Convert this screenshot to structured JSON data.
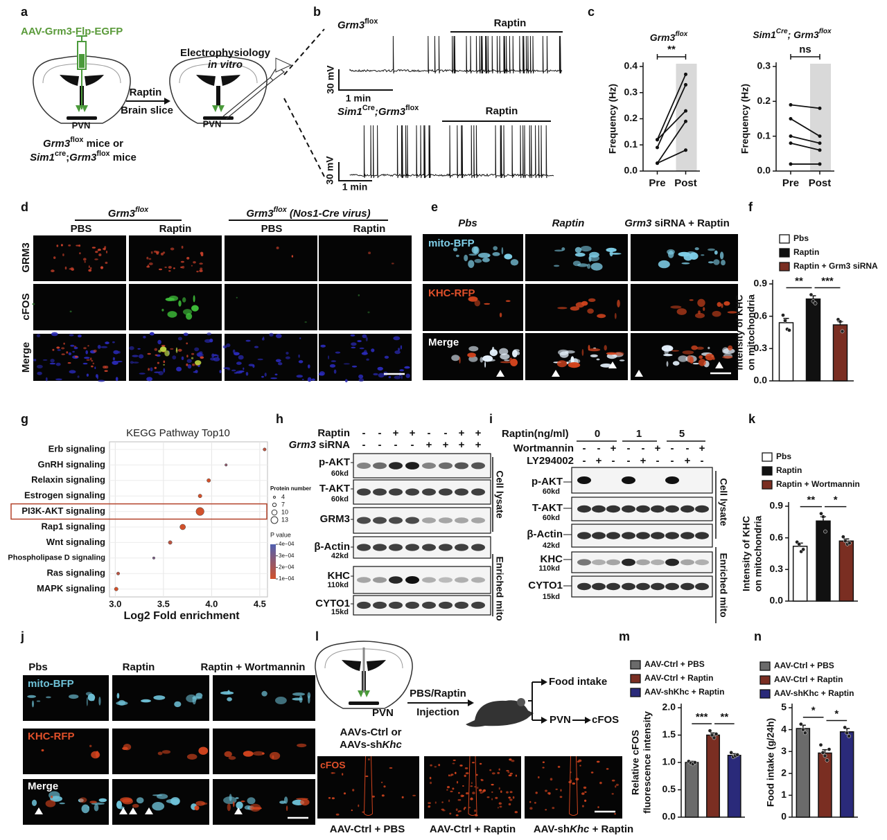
{
  "panel_letters": [
    "a",
    "b",
    "c",
    "d",
    "e",
    "f",
    "g",
    "h",
    "i",
    "j",
    "k",
    "l",
    "m",
    "n"
  ],
  "panel_a": {
    "virus": "AAV-Grm3-Flp-EGFP",
    "pvn_left": "PVN",
    "arrow_top": "Raptin",
    "arrow_bottom": "Brain slice",
    "pvn_right": "PVN",
    "ephys": "Electrophysiology",
    "ephys_sub": "in vitro",
    "mice_1": [
      "Grm3",
      "flox",
      " mice or"
    ],
    "mice_2": [
      "Sim1",
      "cre",
      ";",
      "Grm3",
      "flox",
      " mice"
    ]
  },
  "panel_b": {
    "trace1_title": [
      "Grm3",
      "flox"
    ],
    "trace1_bar": "Raptin",
    "scale1_v": "30 mV",
    "scale1_t": "1 min",
    "trace2_title": [
      "Sim1",
      "Cre",
      ";Grm3",
      "flox"
    ],
    "trace2_bar": "Raptin",
    "scale2_v": "30 mV",
    "scale2_t": "1 min"
  },
  "panel_d": {
    "group1": [
      "Grm3",
      "flox"
    ],
    "group2": [
      "Grm3",
      "flox",
      " (Nos1-Cre virus)"
    ],
    "columns": [
      "PBS",
      "Raptin",
      "PBS",
      "Raptin"
    ],
    "rows": [
      "GRM3",
      "cFOS",
      "Merge"
    ]
  },
  "panel_e": {
    "columns": [
      [
        "Pbs"
      ],
      [
        "Raptin"
      ],
      [
        "Grm3",
        " siRNA + Raptin"
      ]
    ],
    "rows": [
      "mito-BFP",
      "KHC-RFP",
      "Merge"
    ]
  },
  "panel_h": {
    "rows": [
      [
        "Raptin"
      ],
      [
        "Grm3",
        " siRNA"
      ]
    ],
    "signs": [
      [
        "-",
        "-",
        "+",
        "+",
        "-",
        "-",
        "+",
        "+"
      ],
      [
        "-",
        "-",
        "-",
        "-",
        "+",
        "+",
        "+",
        "+"
      ]
    ],
    "blots": [
      {
        "name": "p-AKT",
        "size": "60kd"
      },
      {
        "name": "T-AKT",
        "size": "60kd"
      },
      {
        "name": "GRM3"
      },
      {
        "name": "β-Actin",
        "size": "42kd"
      },
      {
        "name": "KHC",
        "size": "110kd"
      },
      {
        "name": "CYTO1",
        "size": "15kd"
      }
    ],
    "groups": [
      "Cell lysate",
      "Enriched mito"
    ]
  },
  "panel_i": {
    "raptin_label": "Raptin(ng/ml)",
    "doses": [
      "0",
      "1",
      "5"
    ],
    "rows": [
      "Wortmannin",
      "LY294002"
    ],
    "signs": [
      [
        "-",
        "-",
        "+",
        "-",
        "-",
        "+",
        "-",
        "-",
        "+"
      ],
      [
        "-",
        "+",
        "-",
        "-",
        "+",
        "-",
        "-",
        "+",
        "-"
      ]
    ],
    "blots": [
      {
        "name": "p-AKT",
        "size": "60kd"
      },
      {
        "name": "T-AKT",
        "size": "60kd"
      },
      {
        "name": "β-Actin",
        "size": "42kd"
      },
      {
        "name": "KHC",
        "size": "110kd"
      },
      {
        "name": "CYTO1",
        "size": "15kd"
      }
    ],
    "groups": [
      "Cell lysate",
      "Enriched mito"
    ]
  },
  "panel_j": {
    "columns": [
      "Pbs",
      "Raptin",
      "Raptin + Wortmannin"
    ],
    "rows": [
      "mito-BFP",
      "KHC-RFP",
      "Merge"
    ]
  },
  "panel_l": {
    "pvn": "PVN",
    "mice_1": "AAVs-Ctrl or",
    "mice_2": [
      "AAVs-sh",
      "Khc"
    ],
    "injection_1": "PBS/Raptin",
    "injection_2": "Injection",
    "out_1": "Food intake",
    "out_2": "PVN",
    "out_3": "cFOS",
    "image_label": "cFOS",
    "columns": [
      [
        "AAV-Ctrl + PBS"
      ],
      [
        "AAV-Ctrl + Raptin"
      ],
      [
        "AAV-sh",
        "Khc",
        " + Raptin"
      ]
    ]
  },
  "chart_data": [
    {
      "type": "line",
      "title": [
        "Grm3",
        "flox"
      ],
      "categories": [
        "Pre",
        "Post"
      ],
      "ylabel": "Frequency (Hz)",
      "ylim": [
        0,
        0.4
      ],
      "yticks": [
        {
          "value": 0,
          "label": "0.0"
        },
        0.1,
        0.2,
        0.3,
        0.4
      ],
      "color": "#111111",
      "series": [
        {
          "values": [
            0.12,
            0.37
          ]
        },
        {
          "values": [
            0.09,
            0.33
          ]
        },
        {
          "values": [
            0.12,
            0.23
          ]
        },
        {
          "values": [
            0.03,
            0.19
          ]
        },
        {
          "values": [
            0.03,
            0.08
          ]
        }
      ],
      "annotation": "**"
    },
    {
      "type": "line",
      "title": [
        "Sim1",
        "Cre",
        "; Grm3",
        "flox"
      ],
      "categories": [
        "Pre",
        "Post"
      ],
      "ylabel": "Frequency (Hz)",
      "ylim": [
        0,
        0.3
      ],
      "yticks": [
        {
          "value": 0,
          "label": "0.0"
        },
        0.1,
        0.2,
        0.3
      ],
      "color": "#111111",
      "series": [
        {
          "values": [
            0.19,
            0.18
          ]
        },
        {
          "values": [
            0.15,
            0.1
          ]
        },
        {
          "values": [
            0.1,
            0.08
          ]
        },
        {
          "values": [
            0.08,
            0.06
          ]
        },
        {
          "values": [
            0.02,
            0.02
          ]
        }
      ],
      "annotation": "ns"
    },
    {
      "type": "bar",
      "ylabel": [
        "Intensity of KHC",
        "on mitochondria"
      ],
      "ylim": [
        0,
        0.9
      ],
      "yticks": [
        {
          "value": 0,
          "label": "0.0"
        },
        0.3,
        0.6,
        0.9
      ],
      "series": [
        {
          "name": "Pbs",
          "color": "#ffffff",
          "values": [
            0.54
          ],
          "errors": [
            0.04
          ],
          "points": [
            0.61,
            0.56,
            0.48,
            0.47
          ]
        },
        {
          "name": "Raptin",
          "color": "#111111",
          "values": [
            0.76
          ],
          "errors": [
            0.03
          ],
          "points": [
            0.8,
            0.74,
            0.72
          ]
        },
        {
          "name": "Raptin + Grm3 siRNA",
          "color": "#7a2e22",
          "values": [
            0.52
          ],
          "errors": [
            0.03
          ],
          "points": [
            0.57,
            0.55,
            0.46
          ]
        }
      ],
      "annotations": [
        {
          "text": "**",
          "from": 0,
          "to": 1
        },
        {
          "text": "***",
          "from": 1,
          "to": 2
        }
      ]
    },
    {
      "type": "bar",
      "ylabel": [
        "Intensity of KHC",
        "on mitochondria"
      ],
      "ylim": [
        0,
        0.9
      ],
      "yticks": [
        {
          "value": 0,
          "label": "0.0"
        },
        0.3,
        0.6,
        0.9
      ],
      "series": [
        {
          "name": "Pbs",
          "color": "#ffffff",
          "values": [
            0.52
          ],
          "errors": [
            0.03
          ],
          "points": [
            0.56,
            0.54,
            0.47,
            0.49
          ]
        },
        {
          "name": "Raptin",
          "color": "#111111",
          "values": [
            0.76
          ],
          "errors": [
            0.04
          ],
          "points": [
            0.83,
            0.8,
            0.66
          ]
        },
        {
          "name": "Raptin + Wortmannin",
          "color": "#7a2e22",
          "values": [
            0.57
          ],
          "errors": [
            0.02
          ],
          "points": [
            0.61,
            0.57,
            0.54,
            0.55
          ]
        }
      ],
      "annotations": [
        {
          "text": "**",
          "from": 0,
          "to": 1
        },
        {
          "text": "*",
          "from": 1,
          "to": 2
        }
      ]
    },
    {
      "type": "scatter",
      "title": "KEGG Pathway Top10",
      "xlabel": "Log2 Fold enrichment",
      "categories": [
        "Erb signaling",
        "GnRH signaling",
        "Relaxin signaling",
        "Estrogen signaling",
        "PI3K-AKT signaling",
        "Rap1 signaling",
        "Wnt signaling",
        "Phospholipase D signaling",
        "Ras signaling",
        "MAPK signaling"
      ],
      "x": [
        4.55,
        4.15,
        3.97,
        3.88,
        3.88,
        3.7,
        3.57,
        3.4,
        3.03,
        3.01
      ],
      "sizes": [
        5,
        4,
        6,
        6,
        13,
        9,
        6,
        4,
        5,
        6
      ],
      "p_values": [
        0.00015,
        0.00025,
        0.0001,
        0.0001,
        5e-05,
        0.0001,
        0.00015,
        0.0003,
        0.00015,
        0.0001
      ],
      "xlim": [
        2.94,
        4.58
      ],
      "xticks": [
        {
          "value": 3,
          "label": "3.0"
        },
        3.5,
        {
          "value": 4,
          "label": "4.0"
        },
        4.5
      ],
      "grid": true,
      "highlight_index": 4,
      "size_legend_title": "Protein number",
      "size_legend": [
        4,
        7,
        10,
        13
      ],
      "color_legend_title": "P value",
      "color_legend": [
        {
          "value": 0.0004,
          "label": "4e−04"
        },
        {
          "value": 0.0003,
          "label": "3e−04"
        },
        {
          "value": 0.0002,
          "label": "2e−04"
        },
        {
          "value": 0.0001,
          "label": "1e−04"
        }
      ]
    },
    {
      "type": "bar",
      "ylabel": [
        "Relative cFOS",
        "fluorescence intensity"
      ],
      "ylim": [
        0,
        2
      ],
      "yticks": [
        {
          "value": 0,
          "label": "0.0"
        },
        0.5,
        {
          "value": 1,
          "label": "1.0"
        },
        1.5,
        {
          "value": 2,
          "label": "2.0"
        }
      ],
      "series": [
        {
          "name": "AAV-Ctrl + PBS",
          "color": "#6b6b6b",
          "values": [
            1.0
          ],
          "errors": [
            0.02
          ],
          "points": [
            1.02,
            0.99,
            0.97,
            1.0
          ]
        },
        {
          "name": "AAV-Ctrl + Raptin",
          "color": "#7a2e22",
          "values": [
            1.5
          ],
          "errors": [
            0.04
          ],
          "points": [
            1.58,
            1.5,
            1.45,
            1.52
          ]
        },
        {
          "name": "AAV-shKhc + Raptin",
          "color": "#2a2a7a",
          "values": [
            1.13
          ],
          "errors": [
            0.03
          ],
          "points": [
            1.18,
            1.1,
            1.12,
            1.14
          ]
        }
      ],
      "annotations": [
        {
          "text": "***",
          "from": 0,
          "to": 1
        },
        {
          "text": "**",
          "from": 1,
          "to": 2
        }
      ]
    },
    {
      "type": "bar",
      "ylabel": [
        "Food intake (g/24h)"
      ],
      "ylim": [
        0,
        5
      ],
      "yticks": [
        0,
        1,
        2,
        3,
        4,
        5
      ],
      "series": [
        {
          "name": "AAV-Ctrl + PBS",
          "color": "#6b6b6b",
          "values": [
            4.05
          ],
          "errors": [
            0.15
          ],
          "points": [
            4.25,
            4.0,
            3.85
          ]
        },
        {
          "name": "AAV-Ctrl + Raptin",
          "color": "#7a2e22",
          "values": [
            2.93
          ],
          "errors": [
            0.15
          ],
          "points": [
            3.3,
            2.95,
            2.8,
            2.6,
            3.1
          ]
        },
        {
          "name": "AAV-shKhc + Raptin",
          "color": "#2a2a7a",
          "values": [
            3.9
          ],
          "errors": [
            0.15
          ],
          "points": [
            4.1,
            3.85,
            3.7
          ]
        }
      ],
      "annotations": [
        {
          "text": "*",
          "from": 0,
          "to": 1
        },
        {
          "text": "*",
          "from": 1,
          "to": 2
        }
      ]
    }
  ]
}
